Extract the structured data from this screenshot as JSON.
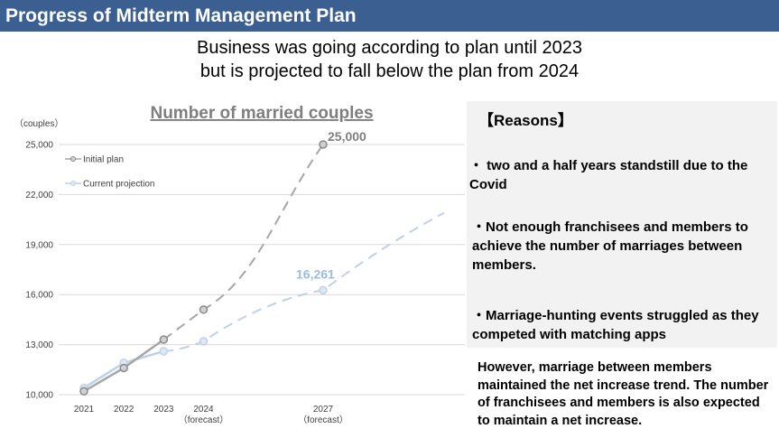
{
  "header": {
    "title": "Progress of Midterm Management Plan"
  },
  "subtitle": {
    "line1": "Business was going according to plan until 2023",
    "line2": "but is projected to fall below the plan from 2024"
  },
  "chart_data": {
    "type": "line",
    "title": "Number of married couples",
    "ylabel": "（couples）",
    "xlabel": "",
    "x_positions": [
      2021,
      2022,
      2023,
      2024,
      2027
    ],
    "categories": [
      {
        "label": "2021",
        "sub": ""
      },
      {
        "label": "2022",
        "sub": ""
      },
      {
        "label": "2023",
        "sub": ""
      },
      {
        "label": "2024",
        "sub": "（forecast）"
      },
      {
        "label": "2027",
        "sub": "（forecast）"
      }
    ],
    "ylim": [
      10000,
      25000
    ],
    "yticks": [
      10000,
      13000,
      16000,
      19000,
      22000,
      25000
    ],
    "ytick_labels": [
      "10,000",
      "13,000",
      "16,000",
      "19,000",
      "22,000",
      "25,000"
    ],
    "legend_position": "top-left",
    "grid": true,
    "series": [
      {
        "name": "Initial plan",
        "color": "#a6a6a6",
        "values": [
          10200,
          11600,
          13300,
          15100,
          25000
        ],
        "data_labels": [
          null,
          null,
          null,
          null,
          "25,000"
        ]
      },
      {
        "name": "Current projection",
        "color": "#bdd2e9",
        "label_color": "#9dbbe0",
        "values": [
          10400,
          11900,
          12600,
          13200,
          16261
        ],
        "data_labels": [
          null,
          null,
          null,
          null,
          "16,261"
        ],
        "trend_end_value": 20900
      }
    ]
  },
  "reasons": {
    "title": "【Reasons】",
    "items": [
      "・ two and a half years  standstill due to the Covid",
      "・Not enough franchisees and members to achieve the number of marriages between members.",
      "・Marriage-hunting events struggled as they competed with matching apps"
    ]
  },
  "conclusion": "However, marriage between members maintained the net increase trend. The number of franchisees and members is also expected to maintain a net increase."
}
